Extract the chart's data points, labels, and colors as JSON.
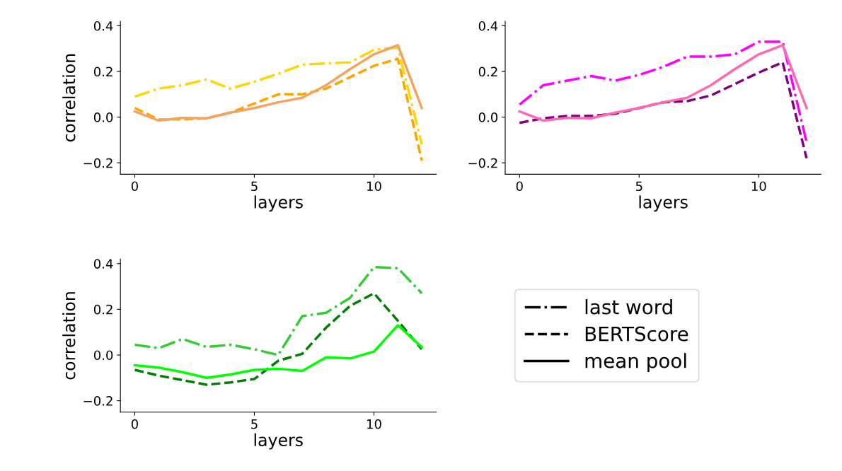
{
  "chart_data": [
    {
      "type": "line",
      "xlabel": "layers",
      "ylabel": "correlation",
      "x": [
        0,
        1,
        2,
        3,
        4,
        5,
        6,
        7,
        8,
        9,
        10,
        11,
        12
      ],
      "xlim": [
        -0.6,
        12.6
      ],
      "xticks": [
        0,
        5,
        10
      ],
      "ylim": [
        -0.25,
        0.42
      ],
      "yticks": [
        {
          "value": -0.2,
          "label": "−0.2"
        },
        {
          "value": 0.0,
          "label": "0.0"
        },
        {
          "value": 0.2,
          "label": "0.2"
        },
        {
          "value": 0.4,
          "label": "0.4"
        }
      ],
      "grid": false,
      "series": [
        {
          "color": "#ffd700",
          "line_style": "dashdot",
          "values": [
            0.09,
            0.125,
            0.14,
            0.165,
            0.125,
            0.155,
            0.19,
            0.23,
            0.235,
            0.24,
            0.295,
            0.305,
            -0.12
          ]
        },
        {
          "color": "#ffa500",
          "line_style": "dashed",
          "values": [
            0.04,
            -0.01,
            -0.01,
            -0.005,
            0.02,
            0.06,
            0.1,
            0.1,
            0.125,
            0.175,
            0.225,
            0.255,
            -0.19
          ]
        },
        {
          "color": "#f4a460",
          "line_style": "solid",
          "values": [
            0.025,
            -0.015,
            -0.003,
            -0.005,
            0.02,
            0.04,
            0.065,
            0.085,
            0.14,
            0.21,
            0.275,
            0.315,
            0.04
          ]
        }
      ]
    },
    {
      "type": "line",
      "xlabel": "layers",
      "x": [
        0,
        1,
        2,
        3,
        4,
        5,
        6,
        7,
        8,
        9,
        10,
        11,
        12
      ],
      "xlim": [
        -0.6,
        12.6
      ],
      "xticks": [
        0,
        5,
        10
      ],
      "ylim": [
        -0.25,
        0.42
      ],
      "yticks": [
        {
          "value": -0.2,
          "label": "−0.2"
        },
        {
          "value": 0.0,
          "label": "0.0"
        },
        {
          "value": 0.2,
          "label": "0.2"
        },
        {
          "value": 0.4,
          "label": "0.4"
        }
      ],
      "grid": false,
      "series": [
        {
          "color": "#ff00ff",
          "line_style": "dashdot",
          "values": [
            0.055,
            0.14,
            0.16,
            0.18,
            0.16,
            0.185,
            0.22,
            0.265,
            0.265,
            0.275,
            0.33,
            0.33,
            -0.11
          ]
        },
        {
          "color": "#800080",
          "line_style": "dashed",
          "values": [
            -0.025,
            -0.005,
            0.005,
            0.005,
            0.015,
            0.04,
            0.065,
            0.07,
            0.095,
            0.145,
            0.195,
            0.24,
            -0.18
          ]
        },
        {
          "color": "#ff69b4",
          "line_style": "solid",
          "values": [
            0.025,
            -0.015,
            -0.003,
            -0.005,
            0.02,
            0.04,
            0.065,
            0.085,
            0.14,
            0.21,
            0.275,
            0.315,
            0.04
          ]
        }
      ]
    },
    {
      "type": "line",
      "xlabel": "layers",
      "ylabel": "correlation",
      "x": [
        0,
        1,
        2,
        3,
        4,
        5,
        6,
        7,
        8,
        9,
        10,
        11,
        12
      ],
      "xlim": [
        -0.6,
        12.6
      ],
      "xticks": [
        0,
        5,
        10
      ],
      "ylim": [
        -0.25,
        0.42
      ],
      "yticks": [
        {
          "value": -0.2,
          "label": "−0.2"
        },
        {
          "value": 0.0,
          "label": "0.0"
        },
        {
          "value": 0.2,
          "label": "0.2"
        },
        {
          "value": 0.4,
          "label": "0.4"
        }
      ],
      "grid": false,
      "series": [
        {
          "color": "#32cd32",
          "line_style": "dashdot",
          "values": [
            0.045,
            0.03,
            0.07,
            0.035,
            0.045,
            0.025,
            0.0,
            0.17,
            0.185,
            0.25,
            0.385,
            0.38,
            0.27
          ]
        },
        {
          "color": "#008000",
          "line_style": "dashed",
          "values": [
            -0.065,
            -0.09,
            -0.11,
            -0.13,
            -0.12,
            -0.105,
            -0.025,
            0.005,
            0.12,
            0.215,
            0.27,
            0.15,
            0.025
          ]
        },
        {
          "color": "#00ff00",
          "line_style": "solid",
          "values": [
            -0.045,
            -0.055,
            -0.075,
            -0.1,
            -0.085,
            -0.065,
            -0.06,
            -0.07,
            -0.01,
            -0.015,
            0.015,
            0.13,
            0.035
          ]
        }
      ]
    },
    {
      "type": "other",
      "annotations": [
        "last word",
        "BERTScore",
        "mean pool"
      ]
    }
  ]
}
